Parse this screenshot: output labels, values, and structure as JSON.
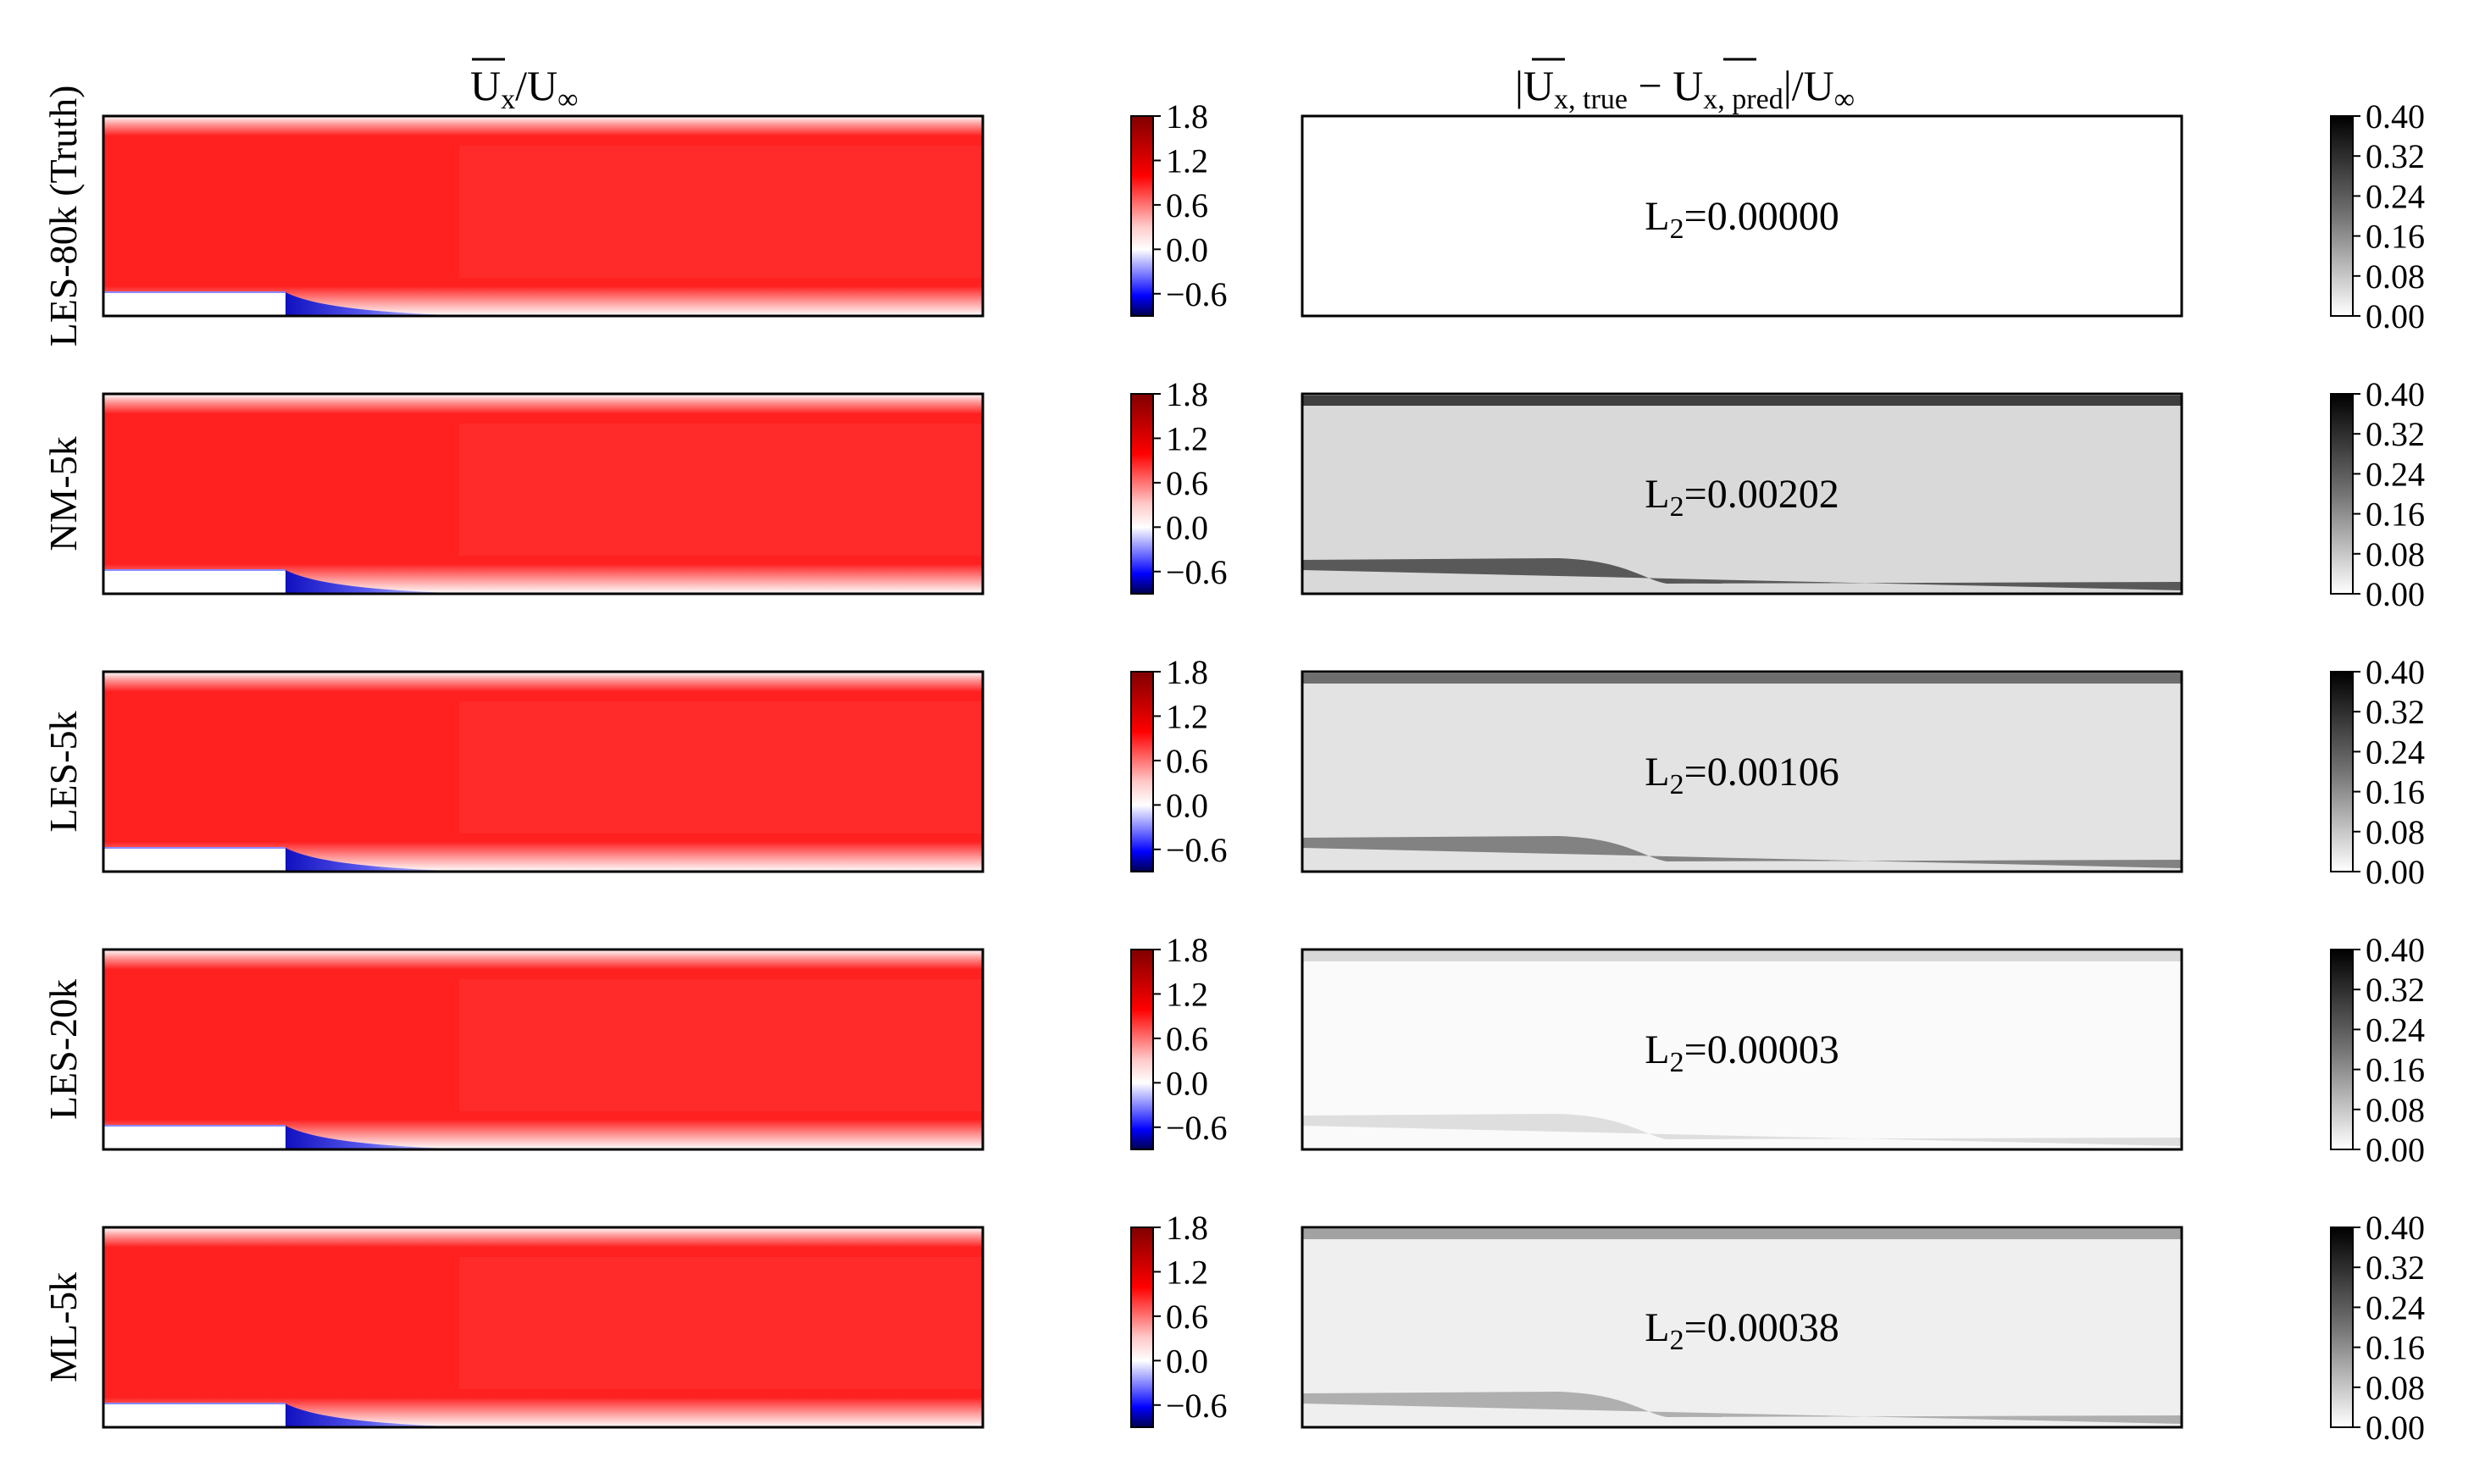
{
  "figure": {
    "col_titles": [
      {
        "main": "U",
        "sub": "x",
        "slash": "/U",
        "sub2": "∞"
      },
      {
        "bar_left": "|",
        "main": "U",
        "sub": "x, true",
        "minus": " − ",
        "main2": "U",
        "sub2": "x, pred",
        "tail": "|/U",
        "sub3": "∞"
      }
    ],
    "colors": {
      "red": "#ff1a1a",
      "blue": "#1a1ad6",
      "frame": "#000000"
    }
  },
  "chart_data": [
    {
      "type": "heatmap",
      "panel": "velocity",
      "title": "U_x/U_∞",
      "rows": [
        "LES-80k (Truth)",
        "NM-5k",
        "LES-5k",
        "LES-20k",
        "ML-5k"
      ],
      "colorbar": {
        "ticks": [
          "1.8",
          "1.2",
          "0.6",
          "0.0",
          "−0.6"
        ],
        "range": [
          -0.9,
          1.8
        ],
        "colormap": "seismic"
      }
    },
    {
      "type": "heatmap",
      "panel": "error",
      "title": "|U_x,true − U_x,pred|/U_∞",
      "rows": [
        "LES-80k (Truth)",
        "NM-5k",
        "LES-5k",
        "LES-20k",
        "ML-5k"
      ],
      "annotations": [
        "L",
        "L",
        "L",
        "L",
        "L"
      ],
      "l2_values": [
        "=0.00000",
        "=0.00202",
        "=0.00106",
        "=0.00003",
        "=0.00038"
      ],
      "l2_numeric": [
        0.0,
        0.00202,
        0.00106,
        3e-05,
        0.00038
      ],
      "l2_subscript": "2",
      "colorbar": {
        "ticks": [
          "0.40",
          "0.32",
          "0.24",
          "0.16",
          "0.08",
          "0.00"
        ],
        "range": [
          0.0,
          0.4
        ],
        "colormap": "Greys"
      }
    }
  ]
}
